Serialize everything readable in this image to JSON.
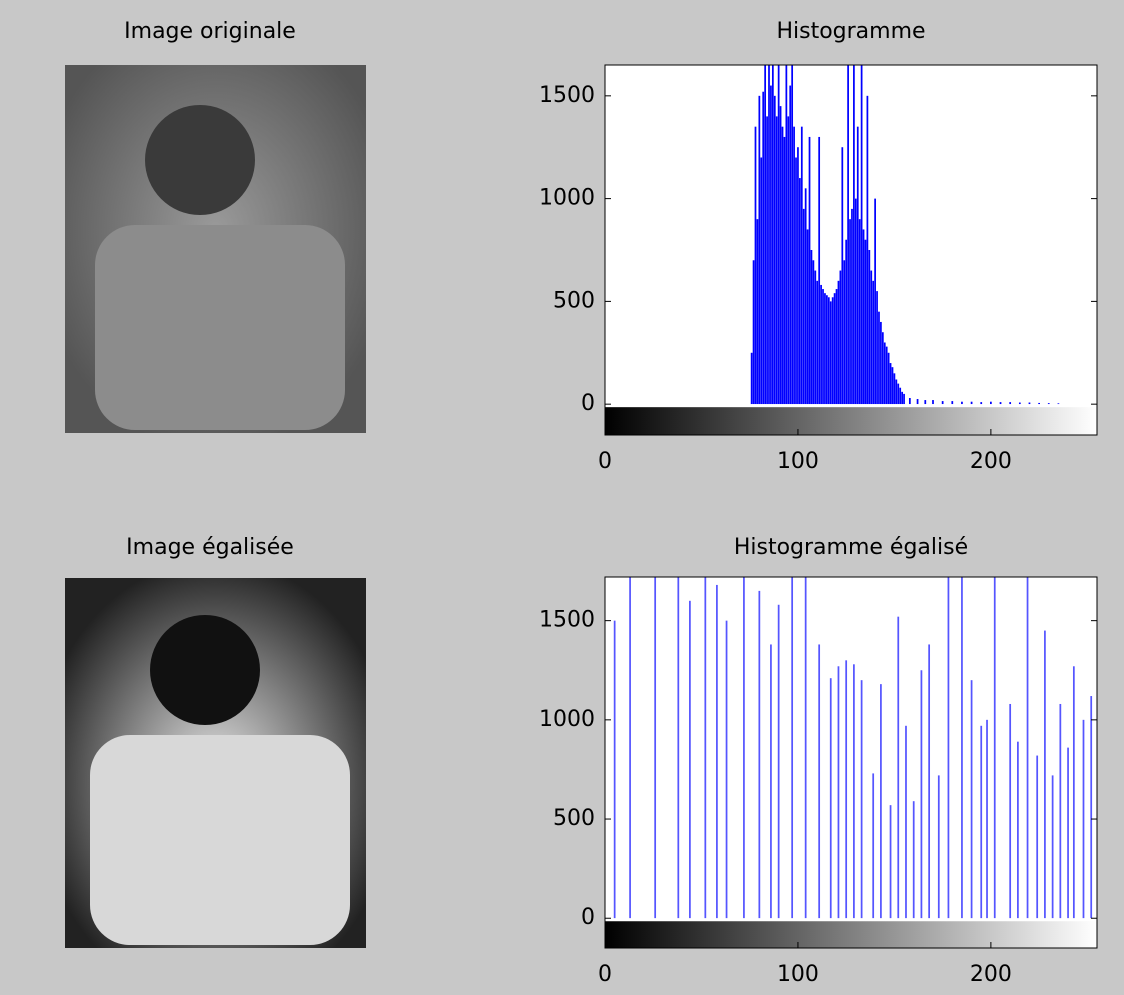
{
  "panels": [
    {
      "title": "Image originale"
    },
    {
      "title": "Image égalisée"
    }
  ],
  "chart_data": [
    {
      "type": "histogram",
      "title": "Histogramme",
      "color": "#0000ff",
      "colorbar": true,
      "xlim": [
        0,
        255
      ],
      "ylim": [
        -150,
        1650
      ],
      "xticks": [
        0,
        100,
        200
      ],
      "yticks": [
        0,
        500,
        1000,
        1500
      ],
      "x": [
        76,
        77,
        78,
        79,
        80,
        81,
        82,
        83,
        84,
        85,
        86,
        87,
        88,
        89,
        90,
        91,
        92,
        93,
        94,
        95,
        96,
        97,
        98,
        99,
        100,
        101,
        102,
        103,
        104,
        105,
        106,
        107,
        108,
        109,
        110,
        111,
        112,
        113,
        114,
        115,
        116,
        117,
        118,
        119,
        120,
        121,
        122,
        123,
        124,
        125,
        126,
        127,
        128,
        129,
        130,
        131,
        132,
        133,
        134,
        135,
        136,
        137,
        138,
        139,
        140,
        141,
        142,
        143,
        144,
        145,
        146,
        147,
        148,
        149,
        150,
        151,
        152,
        153,
        154,
        155,
        158,
        162,
        166,
        170,
        175,
        180,
        185,
        190,
        195,
        200,
        205,
        210,
        215,
        220,
        225,
        230,
        235
      ],
      "values": [
        250,
        700,
        1350,
        900,
        1500,
        1200,
        1520,
        1650,
        1400,
        1650,
        1550,
        1650,
        1500,
        1400,
        1650,
        1450,
        1350,
        1300,
        1650,
        1400,
        1550,
        1650,
        1350,
        1200,
        1250,
        1100,
        1350,
        950,
        1050,
        850,
        1300,
        750,
        700,
        650,
        600,
        1300,
        580,
        560,
        540,
        530,
        520,
        500,
        520,
        540,
        560,
        600,
        650,
        1250,
        700,
        800,
        1650,
        900,
        950,
        1650,
        1000,
        1350,
        900,
        1650,
        850,
        800,
        1500,
        750,
        650,
        600,
        1000,
        550,
        450,
        400,
        350,
        300,
        280,
        250,
        200,
        180,
        150,
        120,
        100,
        80,
        60,
        50,
        30,
        25,
        20,
        20,
        15,
        15,
        12,
        12,
        10,
        12,
        10,
        10,
        8,
        8,
        6,
        5,
        4
      ]
    },
    {
      "type": "histogram",
      "title": "Histogramme égalisé",
      "color": "#5555ff",
      "colorbar": true,
      "xlim": [
        0,
        255
      ],
      "ylim": [
        -150,
        1720
      ],
      "xticks": [
        0,
        100,
        200
      ],
      "yticks": [
        0,
        500,
        1000,
        1500
      ],
      "x": [
        5,
        13,
        26,
        38,
        44,
        52,
        58,
        63,
        72,
        80,
        86,
        90,
        97,
        104,
        111,
        117,
        121,
        125,
        129,
        133,
        139,
        143,
        148,
        152,
        156,
        160,
        164,
        168,
        173,
        178,
        185,
        190,
        195,
        198,
        202,
        210,
        214,
        219,
        224,
        228,
        232,
        236,
        240,
        243,
        248,
        252
      ],
      "values": [
        1500,
        1720,
        1720,
        1720,
        1600,
        1720,
        1680,
        1500,
        1720,
        1650,
        1380,
        1580,
        1720,
        1720,
        1380,
        1210,
        1270,
        1300,
        1280,
        1200,
        730,
        1180,
        570,
        1520,
        970,
        590,
        1250,
        1380,
        720,
        1720,
        1720,
        1200,
        970,
        1000,
        1720,
        1080,
        890,
        1720,
        820,
        1450,
        720,
        1080,
        860,
        1270,
        1000,
        1120
      ]
    }
  ]
}
